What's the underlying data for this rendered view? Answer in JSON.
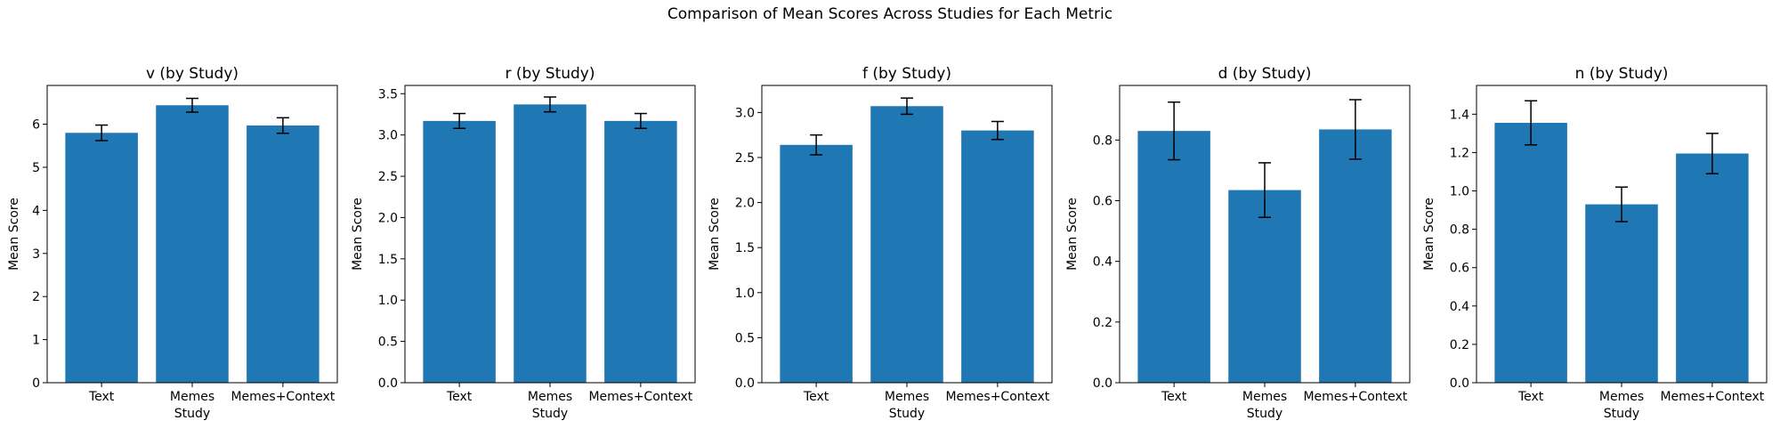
{
  "figure": {
    "suptitle": "Comparison of Mean Scores Across Studies for Each Metric",
    "bar_color": "#1f77b4",
    "err_color": "#000000"
  },
  "chart_data": [
    {
      "type": "bar",
      "title": "v (by Study)",
      "xlabel": "Study",
      "ylabel": "Mean Score",
      "categories": [
        "Text",
        "Memes",
        "Memes+Context"
      ],
      "values": [
        5.8,
        6.44,
        5.97
      ],
      "errors": [
        0.18,
        0.16,
        0.18
      ],
      "ylim": [
        0,
        6.9
      ],
      "yticks": [
        0,
        1,
        2,
        3,
        4,
        5,
        6
      ],
      "ytick_labels": [
        "0",
        "1",
        "2",
        "3",
        "4",
        "5",
        "6"
      ]
    },
    {
      "type": "bar",
      "title": "r (by Study)",
      "xlabel": "Study",
      "ylabel": "Mean Score",
      "categories": [
        "Text",
        "Memes",
        "Memes+Context"
      ],
      "values": [
        3.17,
        3.37,
        3.17
      ],
      "errors": [
        0.09,
        0.09,
        0.09
      ],
      "ylim": [
        0,
        3.6
      ],
      "yticks": [
        0,
        0.5,
        1,
        1.5,
        2,
        2.5,
        3,
        3.5
      ],
      "ytick_labels": [
        "0.0",
        "0.5",
        "1.0",
        "1.5",
        "2.0",
        "2.5",
        "3.0",
        "3.5"
      ]
    },
    {
      "type": "bar",
      "title": "f (by Study)",
      "xlabel": "Study",
      "ylabel": "Mean Score",
      "categories": [
        "Text",
        "Memes",
        "Memes+Context"
      ],
      "values": [
        2.64,
        3.07,
        2.8
      ],
      "errors": [
        0.11,
        0.09,
        0.1
      ],
      "ylim": [
        0,
        3.3
      ],
      "yticks": [
        0,
        0.5,
        1,
        1.5,
        2,
        2.5,
        3
      ],
      "ytick_labels": [
        "0.0",
        "0.5",
        "1.0",
        "1.5",
        "2.0",
        "2.5",
        "3.0"
      ]
    },
    {
      "type": "bar",
      "title": "d (by Study)",
      "xlabel": "Study",
      "ylabel": "Mean Score",
      "categories": [
        "Text",
        "Memes",
        "Memes+Context"
      ],
      "values": [
        0.83,
        0.635,
        0.835
      ],
      "errors": [
        0.095,
        0.09,
        0.098
      ],
      "ylim": [
        0,
        0.98
      ],
      "yticks": [
        0,
        0.2,
        0.4,
        0.6,
        0.8
      ],
      "ytick_labels": [
        "0.0",
        "0.2",
        "0.4",
        "0.6",
        "0.8"
      ]
    },
    {
      "type": "bar",
      "title": "n (by Study)",
      "xlabel": "Study",
      "ylabel": "Mean Score",
      "categories": [
        "Text",
        "Memes",
        "Memes+Context"
      ],
      "values": [
        1.355,
        0.93,
        1.195
      ],
      "errors": [
        0.115,
        0.09,
        0.105
      ],
      "ylim": [
        0,
        1.55
      ],
      "yticks": [
        0,
        0.2,
        0.4,
        0.6,
        0.8,
        1.0,
        1.2,
        1.4
      ],
      "ytick_labels": [
        "0.0",
        "0.2",
        "0.4",
        "0.6",
        "0.8",
        "1.0",
        "1.2",
        "1.4"
      ]
    }
  ]
}
